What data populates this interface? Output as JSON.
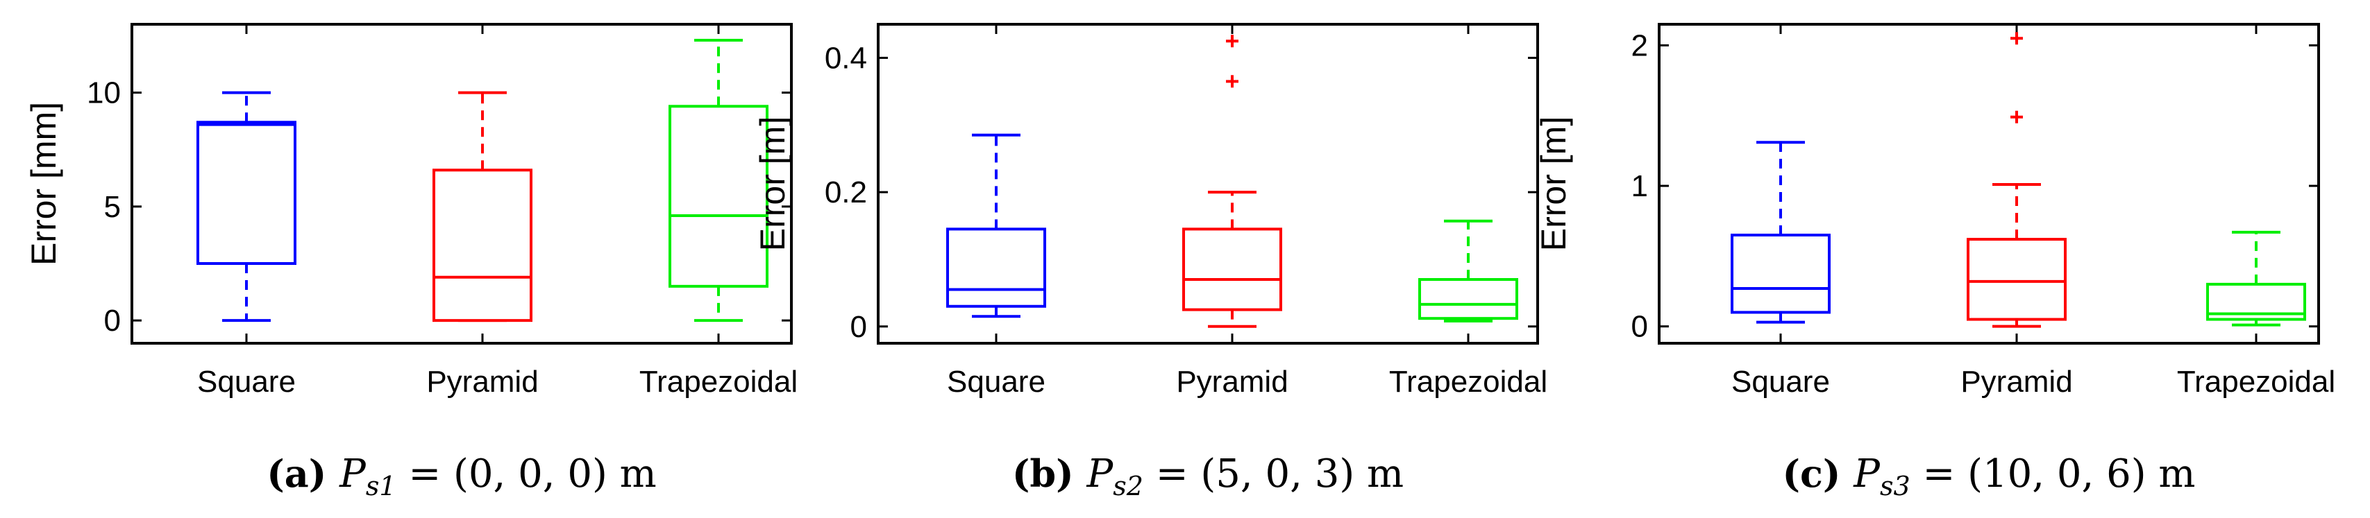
{
  "colors": {
    "square": "#0000ff",
    "pyramid": "#ff0000",
    "trapezoidal": "#00ee00",
    "axis": "#000000"
  },
  "chart_data": [
    {
      "type": "box",
      "ylabel": "Error [mm]",
      "ylim": [
        -1,
        13
      ],
      "yticks": [
        0,
        5,
        10
      ],
      "ytick_labels": [
        "0",
        "5",
        "10"
      ],
      "categories": [
        "Square",
        "Pyramid",
        "Trapezoidal"
      ],
      "boxes": [
        {
          "name": "Square",
          "whisker_low": 0,
          "q1": 2.5,
          "median": 8.6,
          "q3": 8.7,
          "whisker_high": 10,
          "outliers": []
        },
        {
          "name": "Pyramid",
          "whisker_low": 0,
          "q1": 0,
          "median": 1.9,
          "q3": 6.6,
          "whisker_high": 10,
          "outliers": []
        },
        {
          "name": "Trapezoidal",
          "whisker_low": 0,
          "q1": 1.5,
          "median": 4.6,
          "q3": 9.4,
          "whisker_high": 12.3,
          "outliers": []
        }
      ],
      "caption": {
        "letter": "(a)",
        "var": "P",
        "sub": "s1",
        "rest": " = (0, 0, 0) m"
      }
    },
    {
      "type": "box",
      "ylabel": "Error [m]",
      "ylim": [
        -0.025,
        0.45
      ],
      "yticks": [
        0,
        0.2,
        0.4
      ],
      "ytick_labels": [
        "0",
        "0.2",
        "0.4"
      ],
      "categories": [
        "Square",
        "Pyramid",
        "Trapezoidal"
      ],
      "boxes": [
        {
          "name": "Square",
          "whisker_low": 0.015,
          "q1": 0.03,
          "median": 0.055,
          "q3": 0.145,
          "whisker_high": 0.285,
          "outliers": []
        },
        {
          "name": "Pyramid",
          "whisker_low": 0,
          "q1": 0.025,
          "median": 0.07,
          "q3": 0.145,
          "whisker_high": 0.2,
          "outliers": [
            0.365,
            0.425
          ]
        },
        {
          "name": "Trapezoidal",
          "whisker_low": 0.008,
          "q1": 0.012,
          "median": 0.033,
          "q3": 0.07,
          "whisker_high": 0.157,
          "outliers": []
        }
      ],
      "caption": {
        "letter": "(b)",
        "var": "P",
        "sub": "s2",
        "rest": " = (5, 0, 3) m"
      }
    },
    {
      "type": "box",
      "ylabel": "Error [m]",
      "ylim": [
        -0.12,
        2.15
      ],
      "yticks": [
        0,
        1,
        2
      ],
      "ytick_labels": [
        "0",
        "1",
        "2"
      ],
      "categories": [
        "Square",
        "Pyramid",
        "Trapezoidal"
      ],
      "boxes": [
        {
          "name": "Square",
          "whisker_low": 0.03,
          "q1": 0.1,
          "median": 0.27,
          "q3": 0.65,
          "whisker_high": 1.31,
          "outliers": []
        },
        {
          "name": "Pyramid",
          "whisker_low": 0,
          "q1": 0.05,
          "median": 0.32,
          "q3": 0.62,
          "whisker_high": 1.01,
          "outliers": [
            1.49,
            2.05
          ]
        },
        {
          "name": "Trapezoidal",
          "whisker_low": 0.01,
          "q1": 0.05,
          "median": 0.09,
          "q3": 0.3,
          "whisker_high": 0.67,
          "outliers": []
        }
      ],
      "caption": {
        "letter": "(c)",
        "var": "P",
        "sub": "s3",
        "rest": " = (10, 0, 6) m"
      }
    }
  ]
}
